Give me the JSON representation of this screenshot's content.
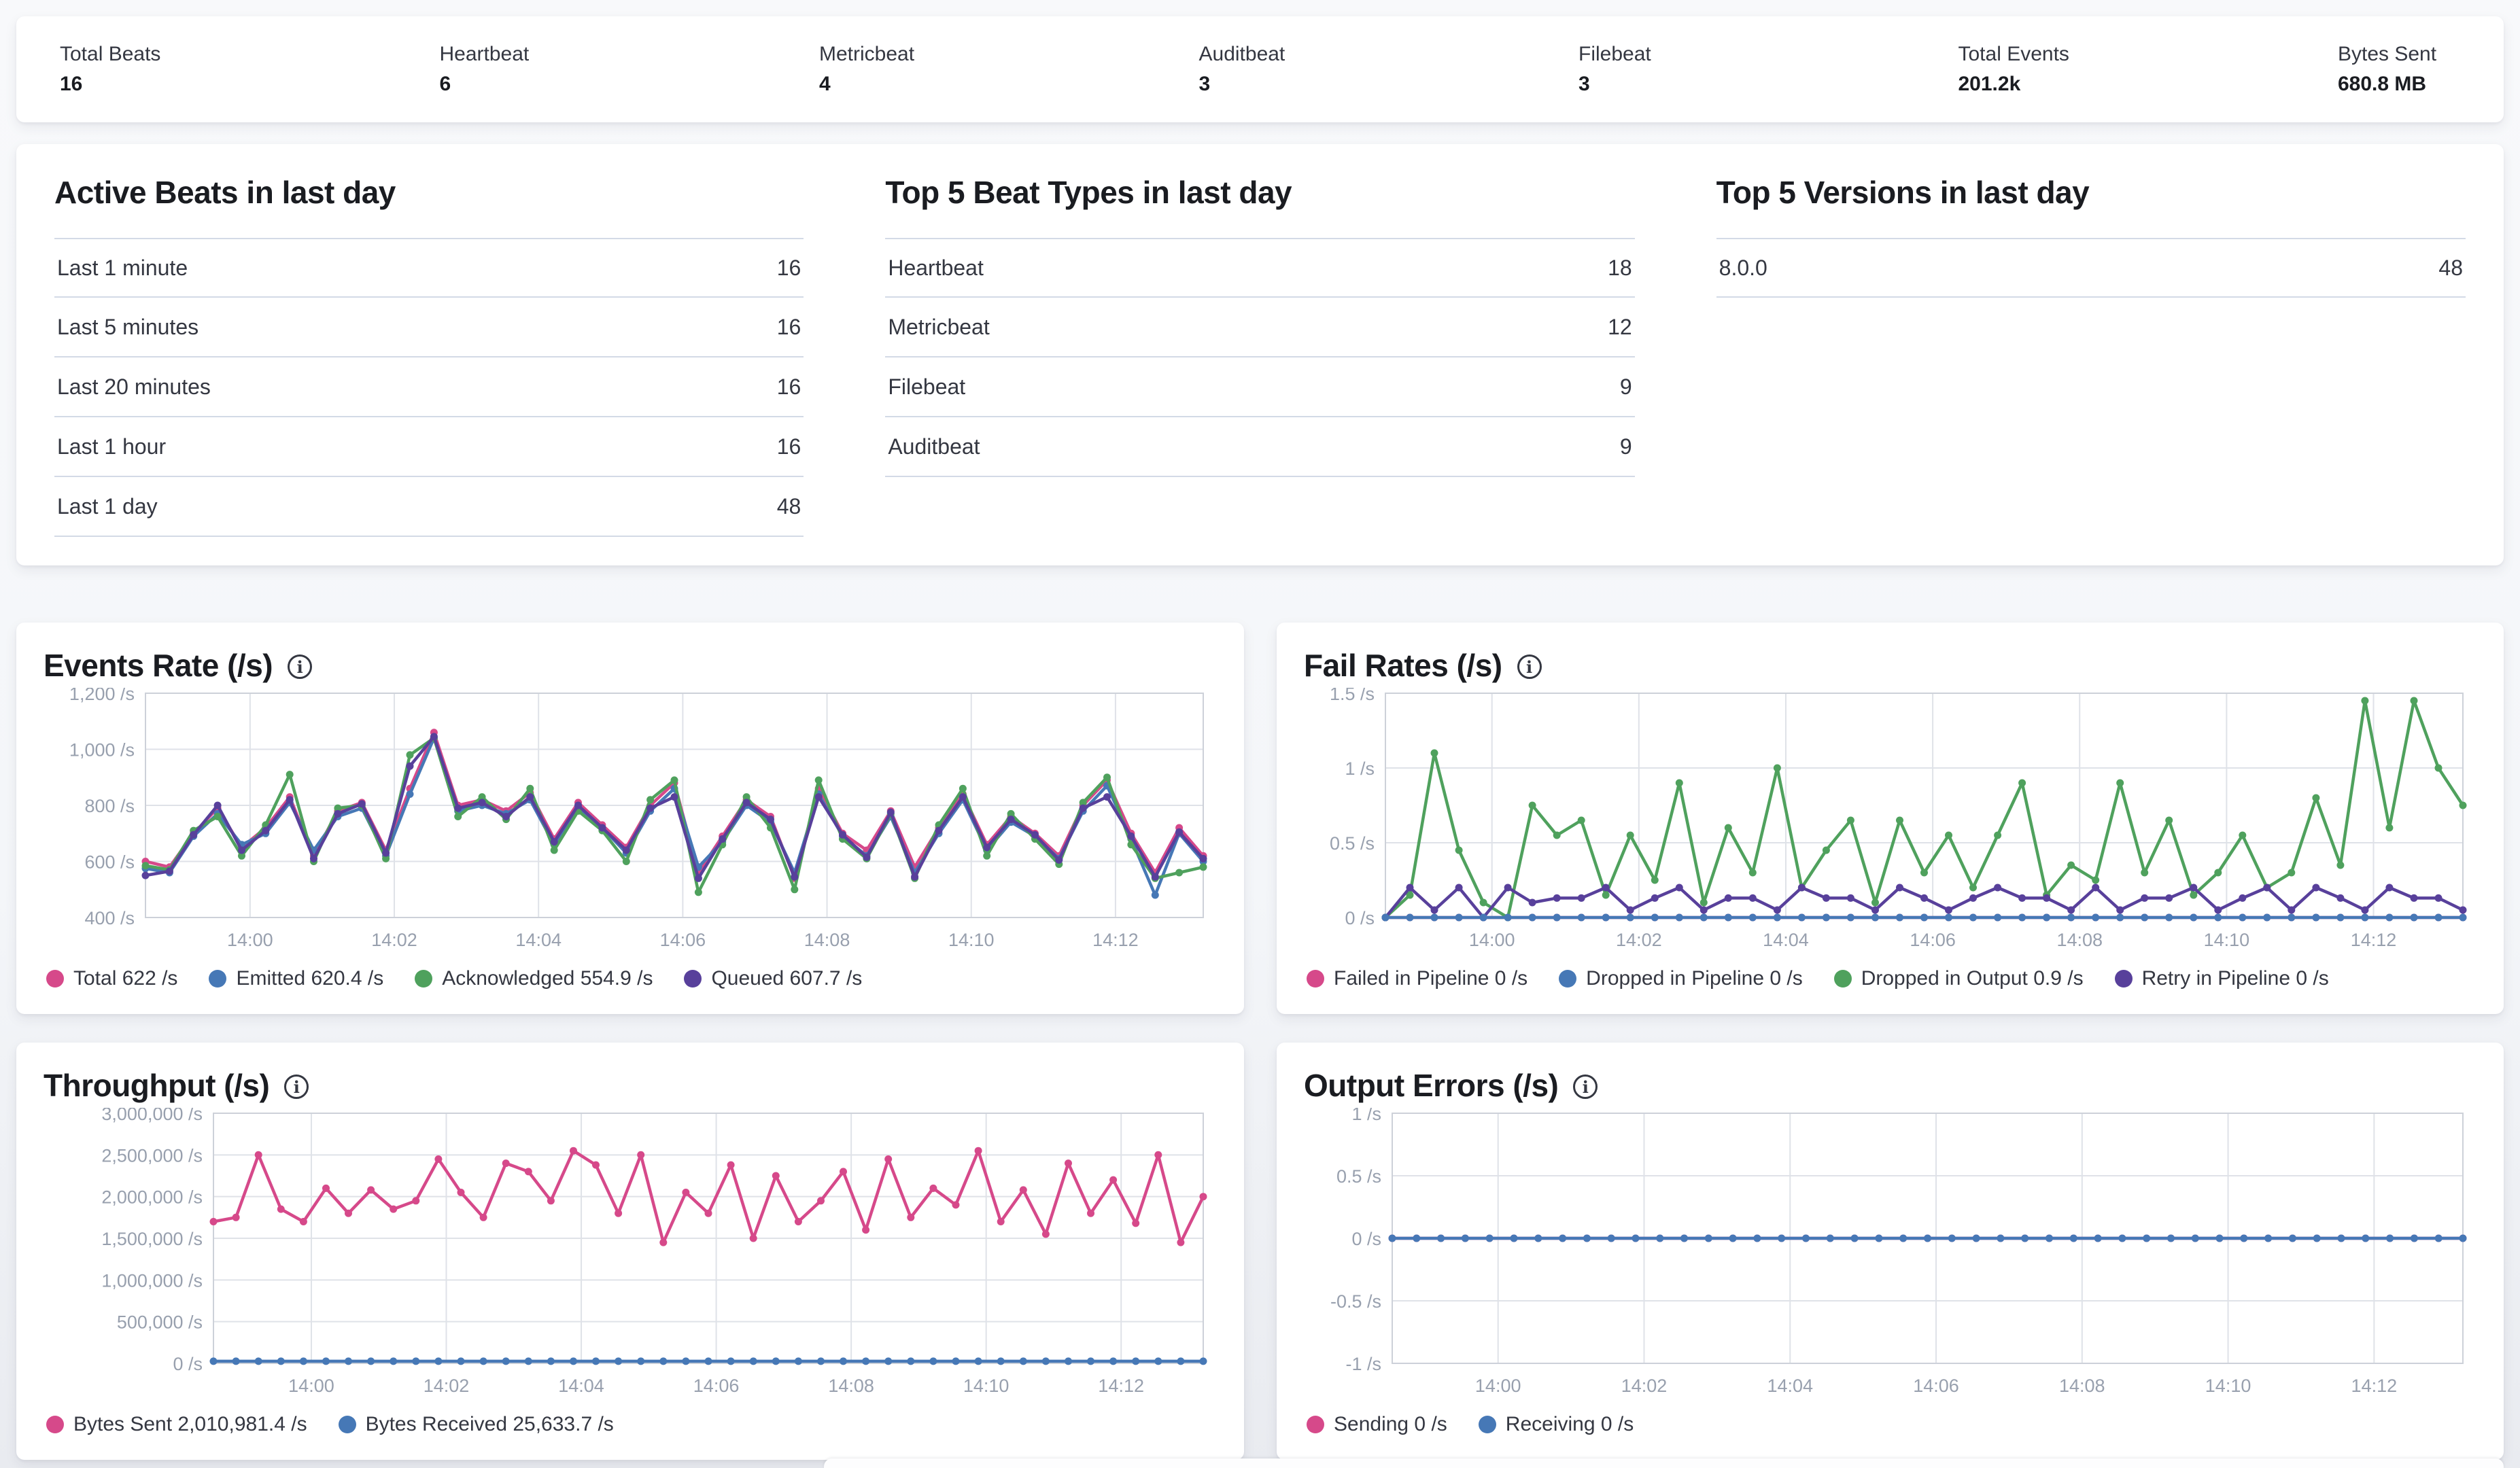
{
  "colors": {
    "pink": "#d6498a",
    "blue": "#4678b6",
    "green": "#4fa15d",
    "purple": "#58409b",
    "grid": "#dfe2e8",
    "frame": "#cdd1d9",
    "axis_text": "#98a0ae",
    "title_text": "#1a1c21",
    "body_text": "#343741",
    "divider": "#d3dae6"
  },
  "stats_bar": {
    "items": [
      {
        "label": "Total Beats",
        "value": "16"
      },
      {
        "label": "Heartbeat",
        "value": "6"
      },
      {
        "label": "Metricbeat",
        "value": "4"
      },
      {
        "label": "Auditbeat",
        "value": "3"
      },
      {
        "label": "Filebeat",
        "value": "3"
      },
      {
        "label": "Total Events",
        "value": "201.2k"
      },
      {
        "label": "Bytes Sent",
        "value": "680.8 MB"
      }
    ]
  },
  "summary_tables": [
    {
      "title": "Active Beats in last day",
      "rows": [
        {
          "label": "Last 1 minute",
          "value": "16"
        },
        {
          "label": "Last 5 minutes",
          "value": "16"
        },
        {
          "label": "Last 20 minutes",
          "value": "16"
        },
        {
          "label": "Last 1 hour",
          "value": "16"
        },
        {
          "label": "Last 1 day",
          "value": "48"
        }
      ]
    },
    {
      "title": "Top 5 Beat Types in last day",
      "rows": [
        {
          "label": "Heartbeat",
          "value": "18"
        },
        {
          "label": "Metricbeat",
          "value": "12"
        },
        {
          "label": "Filebeat",
          "value": "9"
        },
        {
          "label": "Auditbeat",
          "value": "9"
        }
      ]
    },
    {
      "title": "Top 5 Versions in last day",
      "rows": [
        {
          "label": "8.0.0",
          "value": "48"
        }
      ]
    }
  ],
  "chart_data": [
    {
      "type": "line",
      "title": "Events Rate (/s)",
      "row": 1,
      "gutter": 150,
      "ylim": [
        400,
        1200
      ],
      "y_ticks": [
        {
          "v": 400,
          "label": "400 /s"
        },
        {
          "v": 600,
          "label": "600 /s"
        },
        {
          "v": 800,
          "label": "800 /s"
        },
        {
          "v": 1000,
          "label": "1,000 /s"
        },
        {
          "v": 1200,
          "label": "1,200 /s"
        }
      ],
      "x_domain": [
        -87,
        793
      ],
      "x_start_seconds": -87,
      "x_step_seconds": 20,
      "x_ticks": [
        {
          "t": 0,
          "label": "14:00"
        },
        {
          "t": 120,
          "label": "14:02"
        },
        {
          "t": 240,
          "label": "14:04"
        },
        {
          "t": 360,
          "label": "14:06"
        },
        {
          "t": 480,
          "label": "14:08"
        },
        {
          "t": 600,
          "label": "14:10"
        },
        {
          "t": 720,
          "label": "14:12"
        }
      ],
      "legend_position": "bottom",
      "grid": true,
      "series": [
        {
          "name": "Total",
          "legend": "Total 622 /s",
          "color": "pink",
          "values": [
            600,
            580,
            700,
            790,
            650,
            720,
            830,
            620,
            780,
            810,
            640,
            860,
            1060,
            800,
            820,
            780,
            845,
            680,
            810,
            730,
            650,
            800,
            880,
            560,
            690,
            820,
            760,
            540,
            860,
            700,
            640,
            780,
            580,
            720,
            840,
            660,
            760,
            700,
            620,
            800,
            890,
            700,
            560,
            720,
            620
          ]
        },
        {
          "name": "Emitted",
          "legend": "Emitted 620.4 /s",
          "color": "blue",
          "values": [
            575,
            560,
            690,
            770,
            660,
            700,
            810,
            640,
            760,
            790,
            620,
            840,
            1040,
            780,
            800,
            770,
            820,
            660,
            790,
            720,
            630,
            780,
            860,
            580,
            670,
            800,
            740,
            560,
            840,
            690,
            620,
            760,
            560,
            700,
            820,
            640,
            740,
            690,
            610,
            780,
            870,
            680,
            480,
            700,
            600
          ]
        },
        {
          "name": "Acknowledged",
          "legend": "Acknowledged 554.9 /s",
          "color": "green",
          "values": [
            585,
            570,
            710,
            760,
            620,
            730,
            910,
            600,
            790,
            800,
            610,
            980,
            1040,
            760,
            830,
            750,
            860,
            640,
            780,
            710,
            600,
            820,
            890,
            490,
            660,
            830,
            720,
            500,
            890,
            680,
            610,
            770,
            540,
            730,
            860,
            620,
            770,
            680,
            590,
            810,
            900,
            660,
            540,
            560,
            580
          ]
        },
        {
          "name": "Queued",
          "legend": "Queued 607.7 /s",
          "color": "purple",
          "values": [
            550,
            565,
            695,
            800,
            640,
            710,
            820,
            610,
            770,
            805,
            630,
            940,
            1045,
            790,
            810,
            760,
            830,
            670,
            800,
            720,
            640,
            790,
            830,
            540,
            680,
            810,
            750,
            545,
            830,
            695,
            615,
            775,
            545,
            710,
            830,
            650,
            750,
            695,
            605,
            790,
            830,
            690,
            545,
            705,
            610
          ]
        }
      ]
    },
    {
      "type": "line",
      "title": "Fail Rates (/s)",
      "row": 1,
      "gutter": 120,
      "ylim": [
        0,
        1.5
      ],
      "y_ticks": [
        {
          "v": 0,
          "label": "0 /s"
        },
        {
          "v": 0.5,
          "label": "0.5 /s"
        },
        {
          "v": 1,
          "label": "1 /s"
        },
        {
          "v": 1.5,
          "label": "1.5 /s"
        }
      ],
      "x_domain": [
        -87,
        793
      ],
      "x_start_seconds": -87,
      "x_step_seconds": 20,
      "x_ticks": [
        {
          "t": 0,
          "label": "14:00"
        },
        {
          "t": 120,
          "label": "14:02"
        },
        {
          "t": 240,
          "label": "14:04"
        },
        {
          "t": 360,
          "label": "14:06"
        },
        {
          "t": 480,
          "label": "14:08"
        },
        {
          "t": 600,
          "label": "14:10"
        },
        {
          "t": 720,
          "label": "14:12"
        }
      ],
      "legend_position": "bottom",
      "grid": true,
      "series": [
        {
          "name": "Failed in Pipeline",
          "legend": "Failed in Pipeline 0 /s",
          "color": "pink",
          "constant": 0,
          "count": 45,
          "z": 0
        },
        {
          "name": "Dropped in Pipeline",
          "legend": "Dropped in Pipeline 0 /s",
          "color": "blue",
          "constant": 0,
          "count": 45,
          "z": 3
        },
        {
          "name": "Dropped in Output",
          "legend": "Dropped in Output 0.9 /s",
          "color": "green",
          "z": 1,
          "values": [
            0,
            0.15,
            1.1,
            0.45,
            0.1,
            0,
            0.75,
            0.55,
            0.65,
            0.15,
            0.55,
            0.25,
            0.9,
            0.1,
            0.6,
            0.3,
            1.0,
            0.2,
            0.45,
            0.65,
            0.1,
            0.65,
            0.3,
            0.55,
            0.2,
            0.55,
            0.9,
            0.15,
            0.35,
            0.25,
            0.9,
            0.3,
            0.65,
            0.15,
            0.3,
            0.55,
            0.2,
            0.3,
            0.8,
            0.35,
            1.45,
            0.6,
            1.45,
            1.0,
            0.75
          ]
        },
        {
          "name": "Retry in Pipeline",
          "legend": "Retry in Pipeline 0 /s",
          "color": "purple",
          "z": 2,
          "values": [
            0,
            0.2,
            0.05,
            0.2,
            0,
            0.2,
            0.1,
            0.13,
            0.13,
            0.2,
            0.05,
            0.13,
            0.2,
            0.05,
            0.13,
            0.13,
            0.05,
            0.2,
            0.13,
            0.13,
            0.05,
            0.2,
            0.13,
            0.05,
            0.13,
            0.2,
            0.13,
            0.13,
            0.05,
            0.2,
            0.05,
            0.13,
            0.13,
            0.2,
            0.05,
            0.13,
            0.2,
            0.05,
            0.2,
            0.13,
            0.05,
            0.2,
            0.13,
            0.13,
            0.05
          ]
        }
      ]
    },
    {
      "type": "line",
      "title": "Throughput (/s)",
      "row": 2,
      "gutter": 250,
      "ylim": [
        0,
        3000000
      ],
      "y_ticks": [
        {
          "v": 0,
          "label": "0 /s"
        },
        {
          "v": 500000,
          "label": "500,000 /s"
        },
        {
          "v": 1000000,
          "label": "1,000,000 /s"
        },
        {
          "v": 1500000,
          "label": "1,500,000 /s"
        },
        {
          "v": 2000000,
          "label": "2,000,000 /s"
        },
        {
          "v": 2500000,
          "label": "2,500,000 /s"
        },
        {
          "v": 3000000,
          "label": "3,000,000 /s"
        }
      ],
      "x_domain": [
        -87,
        793
      ],
      "x_start_seconds": -87,
      "x_step_seconds": 20,
      "x_ticks": [
        {
          "t": 0,
          "label": "14:00"
        },
        {
          "t": 120,
          "label": "14:02"
        },
        {
          "t": 240,
          "label": "14:04"
        },
        {
          "t": 360,
          "label": "14:06"
        },
        {
          "t": 480,
          "label": "14:08"
        },
        {
          "t": 600,
          "label": "14:10"
        },
        {
          "t": 720,
          "label": "14:12"
        }
      ],
      "legend_position": "bottom",
      "grid": true,
      "series": [
        {
          "name": "Bytes Sent",
          "legend": "Bytes Sent 2,010,981.4 /s",
          "color": "pink",
          "values": [
            1700000,
            1750000,
            2500000,
            1850000,
            1700000,
            2100000,
            1800000,
            2080000,
            1850000,
            1950000,
            2450000,
            2050000,
            1750000,
            2400000,
            2300000,
            1950000,
            2550000,
            2380000,
            1800000,
            2500000,
            1450000,
            2050000,
            1800000,
            2380000,
            1500000,
            2250000,
            1700000,
            1950000,
            2300000,
            1600000,
            2450000,
            1750000,
            2100000,
            1900000,
            2550000,
            1700000,
            2080000,
            1550000,
            2400000,
            1800000,
            2200000,
            1680000,
            2500000,
            1450000,
            2000000
          ]
        },
        {
          "name": "Bytes Received",
          "legend": "Bytes Received 25,633.7 /s",
          "color": "blue",
          "constant": 25634,
          "count": 45
        }
      ]
    },
    {
      "type": "line",
      "title": "Output Errors (/s)",
      "row": 2,
      "gutter": 130,
      "ylim": [
        -1,
        1
      ],
      "y_ticks": [
        {
          "v": -1,
          "label": "-1 /s"
        },
        {
          "v": -0.5,
          "label": "-0.5 /s"
        },
        {
          "v": 0,
          "label": "0 /s"
        },
        {
          "v": 0.5,
          "label": "0.5 /s"
        },
        {
          "v": 1,
          "label": "1 /s"
        }
      ],
      "x_domain": [
        -87,
        793
      ],
      "x_start_seconds": -87,
      "x_step_seconds": 20,
      "x_ticks": [
        {
          "t": 0,
          "label": "14:00"
        },
        {
          "t": 120,
          "label": "14:02"
        },
        {
          "t": 240,
          "label": "14:04"
        },
        {
          "t": 360,
          "label": "14:06"
        },
        {
          "t": 480,
          "label": "14:08"
        },
        {
          "t": 600,
          "label": "14:10"
        },
        {
          "t": 720,
          "label": "14:12"
        }
      ],
      "legend_position": "bottom",
      "grid": true,
      "series": [
        {
          "name": "Sending",
          "legend": "Sending 0 /s",
          "color": "pink",
          "constant": 0,
          "count": 45
        },
        {
          "name": "Receiving",
          "legend": "Receiving 0 /s",
          "color": "blue",
          "constant": 0,
          "count": 45
        }
      ]
    }
  ]
}
